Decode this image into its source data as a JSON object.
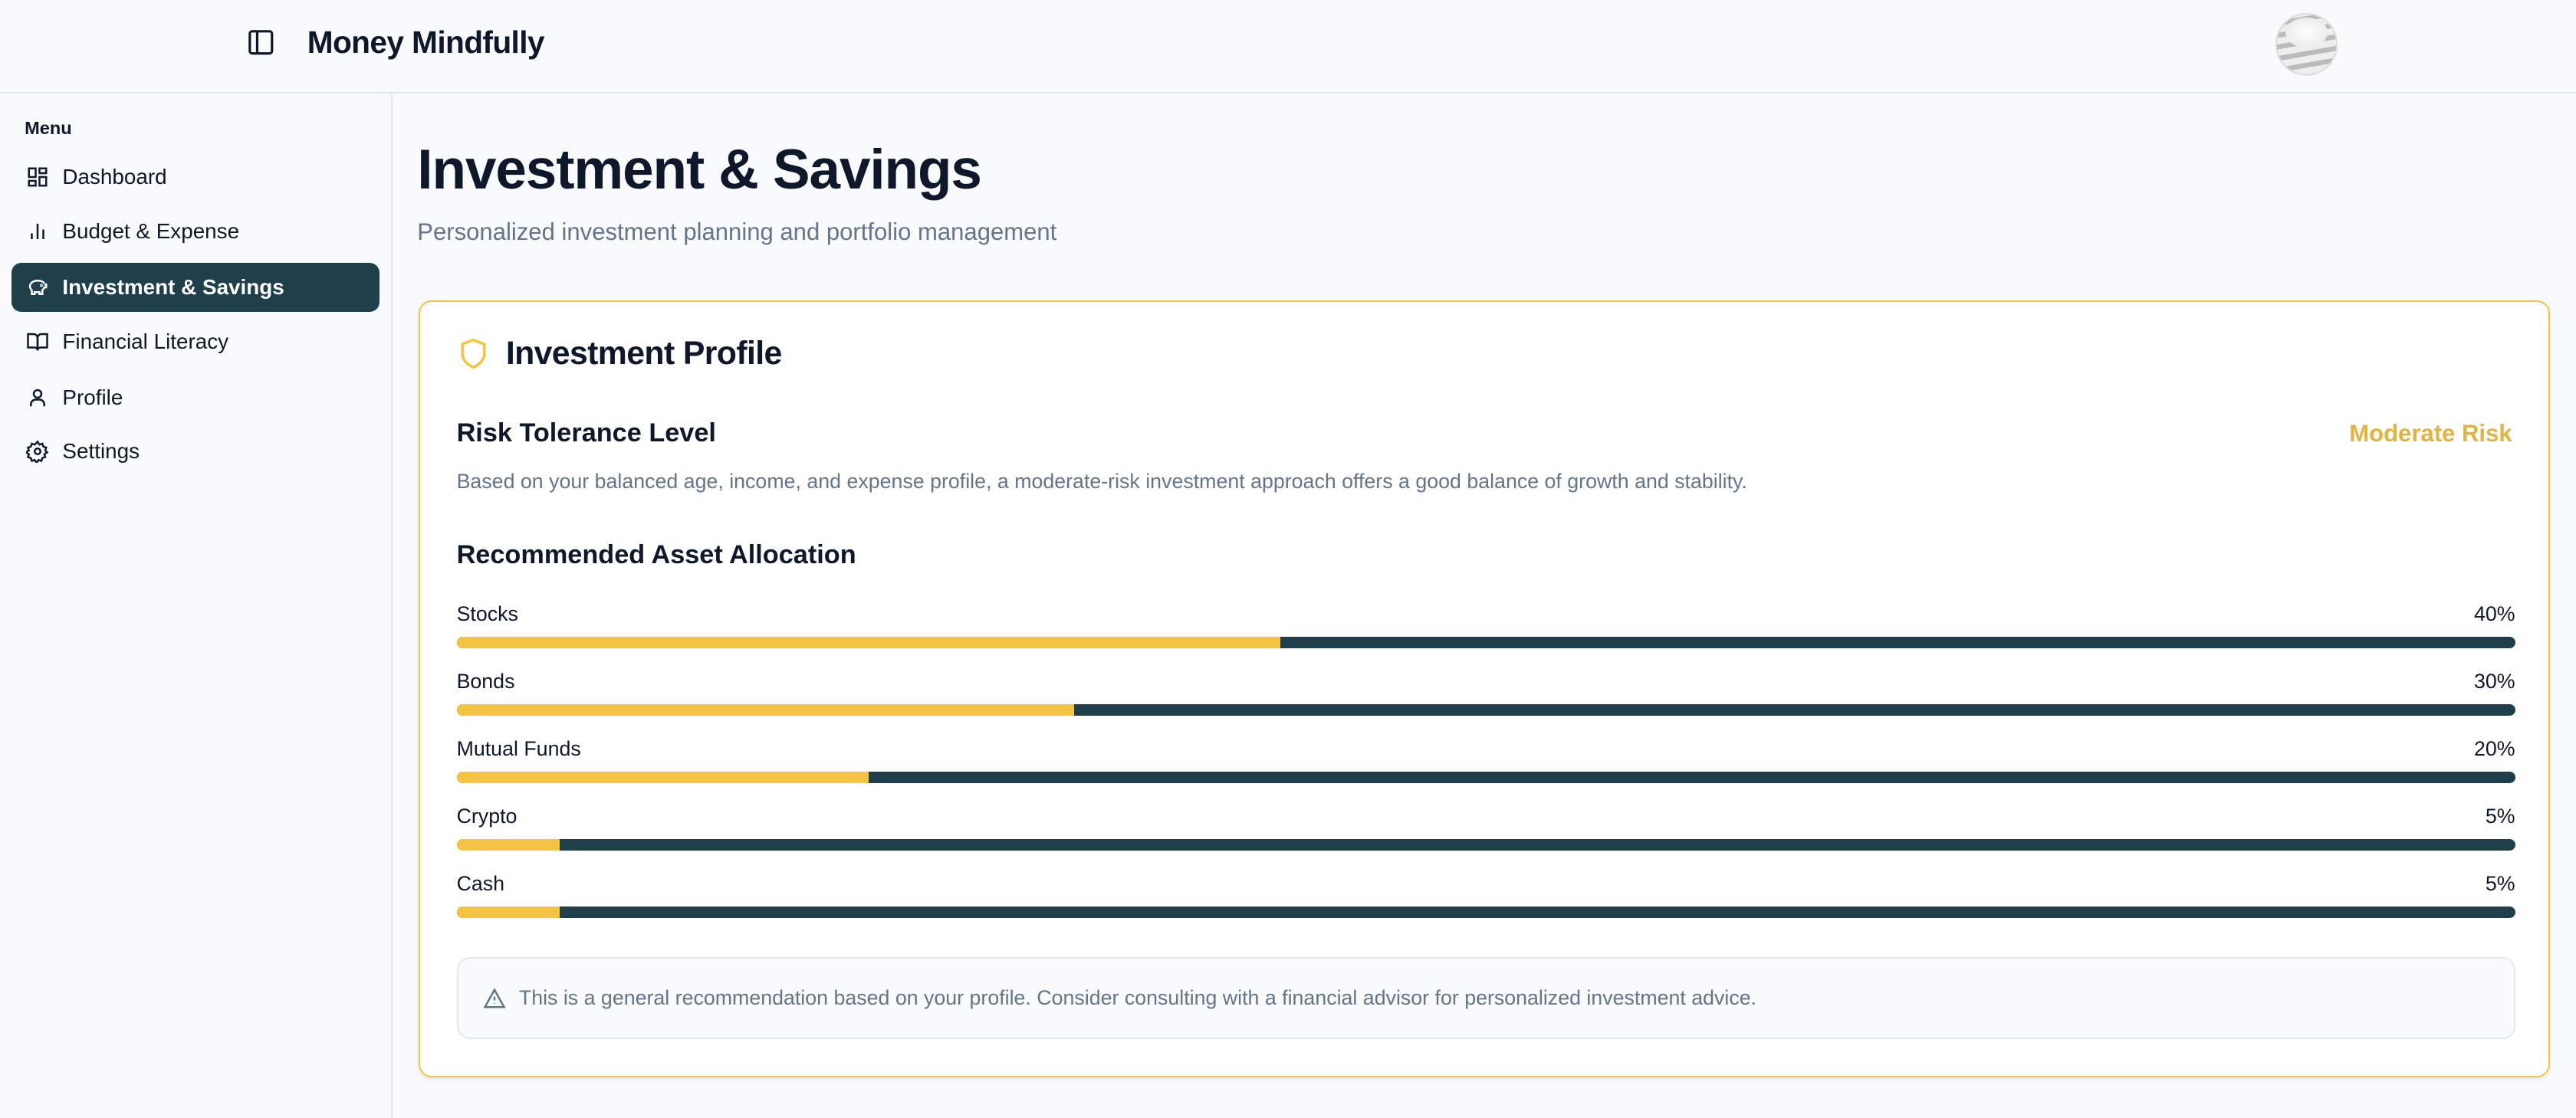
{
  "header": {
    "app_title": "Money Mindfully",
    "toggle_icon": "sidebar-toggle-icon",
    "avatar": "user-avatar"
  },
  "sidebar": {
    "menu_label": "Menu",
    "items": [
      {
        "label": "Dashboard",
        "icon": "dashboard-icon"
      },
      {
        "label": "Budget & Expense",
        "icon": "bar-chart-icon"
      },
      {
        "label": "Investment & Savings",
        "icon": "piggy-bank-icon",
        "active": true
      },
      {
        "label": "Financial Literacy",
        "icon": "book-icon"
      },
      {
        "label": "Profile",
        "icon": "user-icon"
      },
      {
        "label": "Settings",
        "icon": "gear-icon"
      }
    ]
  },
  "main": {
    "title": "Investment & Savings",
    "subtitle": "Personalized investment planning and portfolio management",
    "card": {
      "title": "Investment Profile",
      "risk_heading": "Risk Tolerance Level",
      "risk_value": "Moderate Risk",
      "risk_description": "Based on your balanced age, income, and expense profile, a moderate-risk investment approach offers a good balance of growth and stability.",
      "allocation_heading": "Recommended Asset Allocation",
      "allocations": [
        {
          "label": "Stocks",
          "percent": 40,
          "display": "40%"
        },
        {
          "label": "Bonds",
          "percent": 30,
          "display": "30%"
        },
        {
          "label": "Mutual Funds",
          "percent": 20,
          "display": "20%"
        },
        {
          "label": "Crypto",
          "percent": 5,
          "display": "5%"
        },
        {
          "label": "Cash",
          "percent": 5,
          "display": "5%"
        }
      ],
      "note": "This is a general recommendation based on your profile. Consider consulting with a financial advisor for personalized investment advice."
    }
  },
  "colors": {
    "accent": "#f5c542",
    "primary": "#1f3f4a",
    "risk": "#e3b341"
  }
}
